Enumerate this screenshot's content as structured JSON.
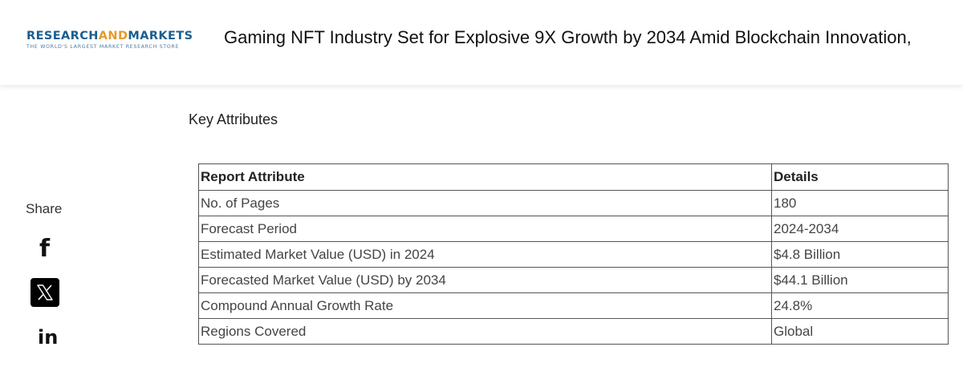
{
  "header": {
    "logo": {
      "main_part1": "RESEARCH",
      "main_and": "AND",
      "main_part2": "MARKETS",
      "tagline": "THE WORLD'S LARGEST MARKET RESEARCH STORE"
    },
    "headline": "Gaming NFT Industry Set for Explosive 9X Growth by 2034 Amid Blockchain Innovation,"
  },
  "share": {
    "label": "Share",
    "icons": [
      "facebook-icon",
      "x-icon",
      "linkedin-icon"
    ],
    "facebook_glyph": "f",
    "linkedin_glyph": "in"
  },
  "section": {
    "title": "Key Attributes"
  },
  "table": {
    "headers": [
      "Report Attribute",
      "Details"
    ],
    "rows": [
      [
        "No. of Pages",
        "180"
      ],
      [
        "Forecast Period",
        "2024-2034"
      ],
      [
        "Estimated Market Value (USD) in 2024",
        "$4.8 Billion"
      ],
      [
        "Forecasted Market Value (USD) by 2034",
        "$44.1 Billion"
      ],
      [
        "Compound Annual Growth Rate",
        "24.8%"
      ],
      [
        "Regions Covered",
        "Global"
      ]
    ]
  },
  "colors": {
    "logo_blue": "#1b5e8f",
    "logo_orange": "#e59a2d",
    "x_button_bg": "#000000"
  }
}
